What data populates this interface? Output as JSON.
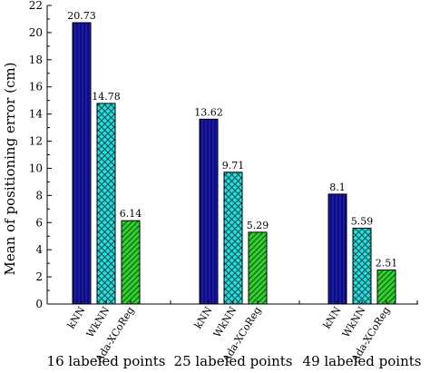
{
  "chart_data": {
    "type": "bar",
    "ylabel": "Mean of positioning error (cm)",
    "ylim": [
      0,
      22
    ],
    "yticks": [
      0,
      2,
      4,
      6,
      8,
      10,
      12,
      14,
      16,
      18,
      20,
      22
    ],
    "grid": false,
    "groups": [
      {
        "label": "16 labeled points",
        "bars": [
          {
            "category": "kNN",
            "value": 20.73,
            "label": "20.73"
          },
          {
            "category": "WkNN",
            "value": 14.78,
            "label": "14.78"
          },
          {
            "category": "Ada-XCoReg",
            "value": 6.14,
            "label": "6.14"
          }
        ]
      },
      {
        "label": "25 labeled points",
        "bars": [
          {
            "category": "kNN",
            "value": 13.62,
            "label": "13.62"
          },
          {
            "category": "WkNN",
            "value": 9.71,
            "label": "9.71"
          },
          {
            "category": "Ada-XCoReg",
            "value": 5.29,
            "label": "5.29"
          }
        ]
      },
      {
        "label": "49 labeled points",
        "bars": [
          {
            "category": "kNN",
            "value": 8.1,
            "label": "8.1"
          },
          {
            "category": "WkNN",
            "value": 5.59,
            "label": "5.59"
          },
          {
            "category": "Ada-XCoReg",
            "value": 2.51,
            "label": "2.51"
          }
        ]
      }
    ],
    "series_colors": {
      "kNN": "#1a1aa6",
      "WkNN": "#22e0e0",
      "Ada-XCoReg": "#2ed12e"
    },
    "series_patterns": {
      "kNN": "vertical-lines",
      "WkNN": "crosshatch",
      "Ada-XCoReg": "diagonal-lines"
    }
  }
}
